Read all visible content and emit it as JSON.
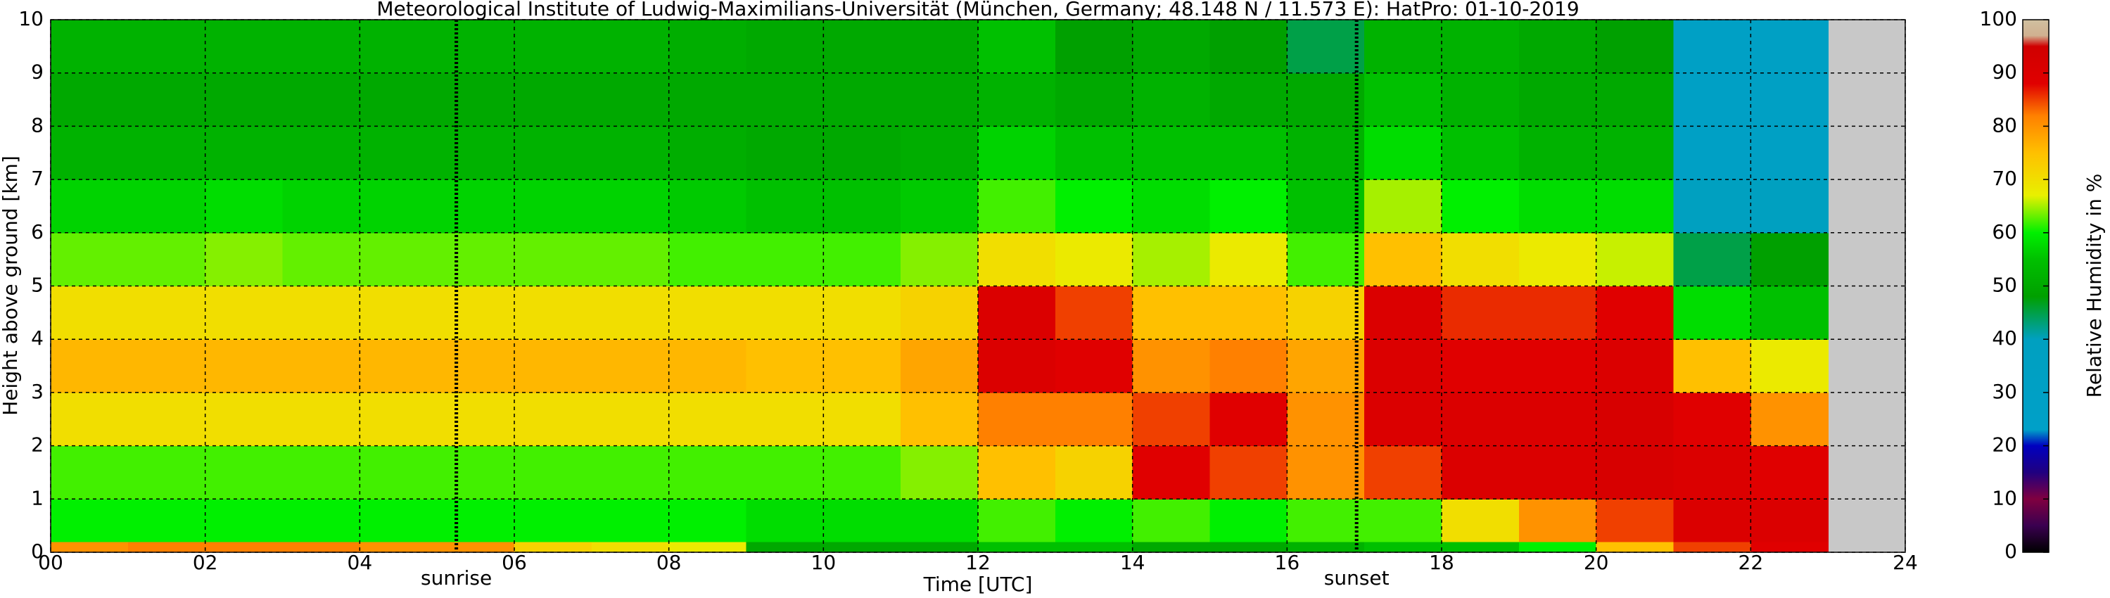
{
  "chart_data": {
    "type": "heatmap",
    "title": "Meteorological Institute of Ludwig-Maximilians-Universität (München, Germany; 48.148 N / 11.573 E):    HatPro: 01-10-2019",
    "x_label": "Time [UTC]",
    "y_label": "Height above ground [km]",
    "colorbar_label": "Relative Humidity in %",
    "xlim": [
      0,
      24
    ],
    "ylim": [
      0,
      10
    ],
    "xticks": [
      {
        "value": 0,
        "label": "00"
      },
      {
        "value": 2,
        "label": "02"
      },
      {
        "value": 4,
        "label": "04"
      },
      {
        "value": 6,
        "label": "06"
      },
      {
        "value": 8,
        "label": "08"
      },
      10,
      12,
      14,
      16,
      18,
      20,
      22,
      24
    ],
    "yticks": [
      0,
      1,
      2,
      3,
      4,
      5,
      6,
      7,
      8,
      9,
      10
    ],
    "clim": [
      0,
      100
    ],
    "cticks": [
      0,
      10,
      20,
      30,
      40,
      50,
      60,
      70,
      80,
      90,
      100
    ],
    "grid": true,
    "no_data_color": "#c8c8c8",
    "colormap": {
      "stops": [
        0,
        5,
        10,
        15,
        20,
        23,
        40,
        42,
        48,
        55,
        60,
        67,
        75,
        82,
        88,
        95,
        97,
        100
      ],
      "colors": [
        "#000000",
        "#3a0050",
        "#800040",
        "#200080",
        "#0000c0",
        "#00a0c8",
        "#00a0c0",
        "#00a090",
        "#00a000",
        "#00c000",
        "#00f000",
        "#e8f000",
        "#ffc000",
        "#ff8000",
        "#e00000",
        "#d00000",
        "#d0b090",
        "#d0c0a0"
      ]
    },
    "x_edges": [
      0,
      1,
      2,
      3,
      4,
      5,
      6,
      7,
      8,
      9,
      10,
      11,
      12,
      13,
      14,
      15,
      16,
      17,
      18,
      19,
      20,
      21,
      22,
      23
    ],
    "y_edges": [
      0,
      0.2,
      1,
      2,
      3,
      4,
      5,
      6,
      7,
      8,
      9,
      10
    ],
    "z": [
      [
        80,
        82,
        82,
        82,
        80,
        80,
        72,
        70,
        68,
        50,
        50,
        50,
        55,
        55,
        50,
        50,
        52,
        55,
        55,
        60,
        75,
        85,
        88
      ],
      [
        60,
        60,
        60,
        60,
        60,
        60,
        60,
        60,
        60,
        58,
        58,
        58,
        62,
        60,
        62,
        60,
        62,
        62,
        70,
        80,
        85,
        90,
        90
      ],
      [
        62,
        62,
        62,
        62,
        62,
        62,
        62,
        62,
        62,
        62,
        62,
        64,
        75,
        72,
        88,
        85,
        80,
        85,
        90,
        90,
        92,
        90,
        88
      ],
      [
        70,
        70,
        70,
        70,
        70,
        70,
        70,
        70,
        70,
        70,
        70,
        75,
        82,
        82,
        85,
        88,
        80,
        90,
        90,
        90,
        92,
        88,
        80
      ],
      [
        76,
        76,
        76,
        76,
        76,
        76,
        76,
        76,
        76,
        75,
        75,
        78,
        90,
        88,
        80,
        82,
        78,
        90,
        88,
        88,
        90,
        75,
        68
      ],
      [
        70,
        70,
        70,
        70,
        70,
        70,
        70,
        70,
        70,
        70,
        70,
        72,
        90,
        85,
        75,
        75,
        72,
        90,
        86,
        86,
        88,
        58,
        55
      ],
      [
        63,
        63,
        64,
        63,
        63,
        63,
        63,
        63,
        62,
        62,
        62,
        64,
        70,
        68,
        65,
        68,
        62,
        75,
        70,
        68,
        66,
        45,
        48
      ],
      [
        57,
        57,
        58,
        57,
        57,
        57,
        57,
        57,
        56,
        55,
        55,
        56,
        62,
        60,
        58,
        60,
        55,
        65,
        60,
        58,
        58,
        40,
        40
      ],
      [
        52,
        52,
        52,
        52,
        52,
        52,
        52,
        52,
        51,
        50,
        50,
        51,
        57,
        55,
        55,
        55,
        52,
        58,
        55,
        52,
        52,
        30,
        32
      ],
      [
        50,
        50,
        50,
        50,
        50,
        50,
        50,
        50,
        50,
        50,
        50,
        50,
        52,
        50,
        52,
        50,
        50,
        55,
        52,
        50,
        50,
        30,
        32
      ],
      [
        52,
        52,
        52,
        52,
        52,
        52,
        52,
        52,
        51,
        50,
        50,
        50,
        55,
        48,
        50,
        48,
        45,
        52,
        52,
        50,
        48,
        30,
        32
      ]
    ],
    "annotations": [
      {
        "text": "sunrise",
        "x": 5.25
      },
      {
        "text": "sunset",
        "x": 16.9
      }
    ]
  }
}
